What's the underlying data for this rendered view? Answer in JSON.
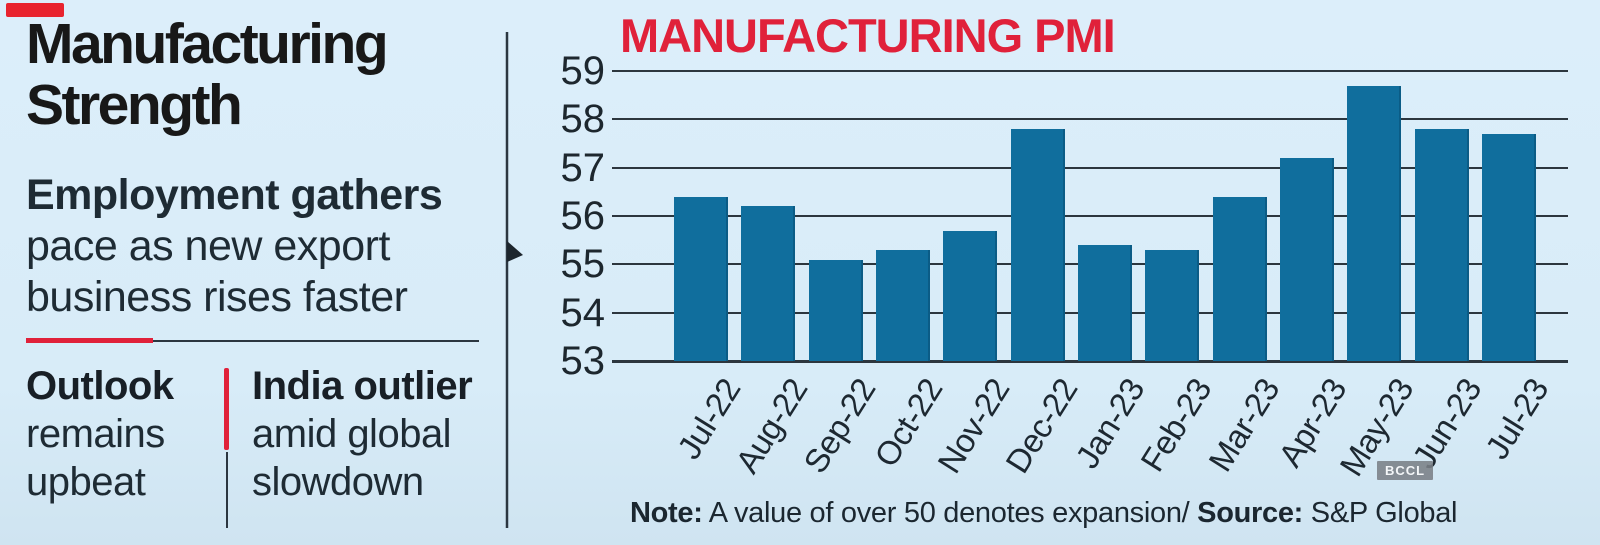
{
  "left_panel": {
    "headline": "Manufacturing\nStrength",
    "subhead_bold": "Employment gathers",
    "subhead_rest": "\npace as new export\nbusiness rises faster",
    "callouts": [
      {
        "title": "Outlook",
        "body": "remains\nupbeat"
      },
      {
        "title": "India outlier",
        "body": "amid global\nslowdown"
      }
    ]
  },
  "colors": {
    "accent_red": "#e0213a",
    "bar_blue": "#106e9d",
    "background_blue": "#d8ecf8",
    "gridline_dark": "#2c363e"
  },
  "chart_data": {
    "type": "bar",
    "title": "MANUFACTURING PMI",
    "categories": [
      "Jul-22",
      "Aug-22",
      "Sep-22",
      "Oct-22",
      "Nov-22",
      "Dec-22",
      "Jan-23",
      "Feb-23",
      "Mar-23",
      "Apr-23",
      "May-23",
      "Jun-23",
      "Jul-23"
    ],
    "values": [
      56.4,
      56.2,
      55.1,
      55.3,
      55.7,
      57.8,
      55.4,
      55.3,
      56.4,
      57.2,
      58.7,
      57.8,
      57.7
    ],
    "xlabel": "",
    "ylabel": "",
    "ylim": [
      53,
      59
    ],
    "yticks": [
      59,
      58,
      57,
      56,
      55,
      54,
      53
    ],
    "grid": true,
    "legend": "none",
    "watermark": "BCCL",
    "note_label": "Note:",
    "note_text": " A value of over 50 denotes expansion/ ",
    "source_label": "Source:",
    "source_text": " S&P Global"
  }
}
